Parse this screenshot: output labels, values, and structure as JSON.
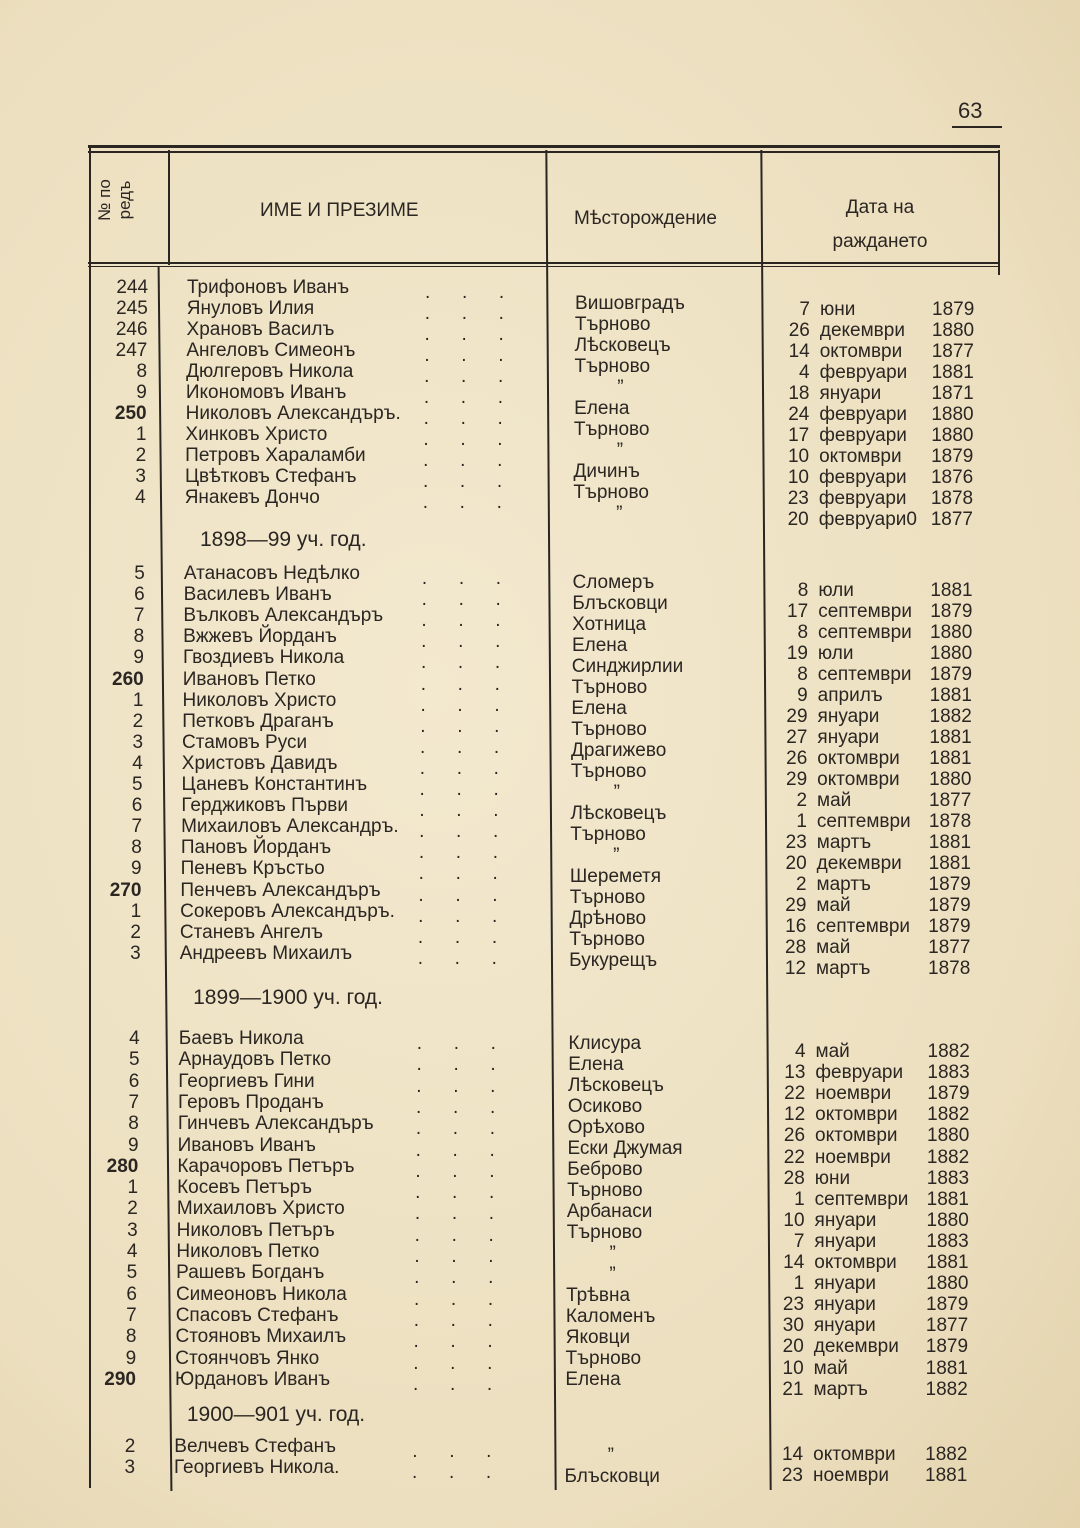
{
  "page_number": "63",
  "header": {
    "col_num": "№ по ред",
    "col_num_line1": "№ по",
    "col_num_line2": "редъ",
    "col_name": "ИМЕ И ПРЕЗИМЕ",
    "col_place": "Мѣсторождение",
    "col_date_line1": "Дата на",
    "col_date_line2": "раждането"
  },
  "sections": [
    {
      "title": "",
      "rows": [
        {
          "num": "244",
          "name": "Трифоновъ Иванъ"
        },
        {
          "num": "245",
          "name": "Януловъ Илия"
        },
        {
          "num": "246",
          "name": "Храновъ Василъ"
        },
        {
          "num": "247",
          "name": "Ангеловъ Симеонъ"
        },
        {
          "num": "8",
          "name": "Дюлгеровъ Никола"
        },
        {
          "num": "9",
          "name": "Икономовъ Иванъ"
        },
        {
          "num": "250",
          "name": "Николовъ Александъръ."
        },
        {
          "num": "1",
          "name": "Хинковъ Христо"
        },
        {
          "num": "2",
          "name": "Петровъ Хараламби"
        },
        {
          "num": "3",
          "name": "Цвѣтковъ Стефанъ"
        },
        {
          "num": "4",
          "name": "Янакевъ Дончо"
        }
      ],
      "places": [
        "Вишовградъ",
        "Търново",
        "Лѣсковецъ",
        "Търново",
        "”",
        "Елена",
        "Търново",
        "”",
        "Дичинъ",
        "Търново",
        "”"
      ],
      "dates": [
        {
          "day": "7",
          "month": "юни",
          "year": "1879"
        },
        {
          "day": "26",
          "month": "декември",
          "year": "1880"
        },
        {
          "day": "14",
          "month": "октомври",
          "year": "1877"
        },
        {
          "day": "4",
          "month": "февруари",
          "year": "1881"
        },
        {
          "day": "18",
          "month": "януари",
          "year": "1871"
        },
        {
          "day": "24",
          "month": "февруари",
          "year": "1880"
        },
        {
          "day": "17",
          "month": "февруари",
          "year": "1880"
        },
        {
          "day": "10",
          "month": "октомври",
          "year": "1879"
        },
        {
          "day": "10",
          "month": "февруари",
          "year": "1876"
        },
        {
          "day": "23",
          "month": "февруари",
          "year": "1878"
        },
        {
          "day": "20",
          "month": "февруари0",
          "year": "1877"
        }
      ]
    },
    {
      "title": "1898—99 уч. год.",
      "rows": [
        {
          "num": "5",
          "name": "Атанасовъ Недѣлко"
        },
        {
          "num": "6",
          "name": "Василевъ Иванъ"
        },
        {
          "num": "7",
          "name": "Вълковъ Александъръ"
        },
        {
          "num": "8",
          "name": "Вжжевъ Йорданъ"
        },
        {
          "num": "9",
          "name": "Гвоздиевъ Никола"
        },
        {
          "num": "260",
          "name": "Ивановъ Петко"
        },
        {
          "num": "1",
          "name": "Николовъ Христо"
        },
        {
          "num": "2",
          "name": "Петковъ Драганъ"
        },
        {
          "num": "3",
          "name": "Стамовъ Руси"
        },
        {
          "num": "4",
          "name": "Христовъ Давидъ"
        },
        {
          "num": "5",
          "name": "Цаневъ Константинъ"
        },
        {
          "num": "6",
          "name": "Герджиковъ Първи"
        },
        {
          "num": "7",
          "name": "Михаиловъ Александръ."
        },
        {
          "num": "8",
          "name": "Пановъ Йорданъ"
        },
        {
          "num": "9",
          "name": "Пеневъ Кръстьо"
        },
        {
          "num": "270",
          "name": "Пенчевъ Александъръ"
        },
        {
          "num": "1",
          "name": "Сокеровъ Александъръ."
        },
        {
          "num": "2",
          "name": "Станевъ Ангелъ"
        },
        {
          "num": "3",
          "name": "Андреевъ Михаилъ"
        }
      ],
      "places": [
        "Сломеръ",
        "Блъсковци",
        "Хотница",
        "Елена",
        "Синджирлии",
        "Търново",
        "Елена",
        "Търново",
        "Драгижево",
        "Търново",
        "”",
        "Лѣсковецъ",
        "Търново",
        "”",
        "Шереметя",
        "Търново",
        "Дрѣново",
        "Търново",
        "Букурещъ"
      ],
      "dates": [
        {
          "day": "8",
          "month": "юли",
          "year": "1881"
        },
        {
          "day": "17",
          "month": "септември",
          "year": "1879"
        },
        {
          "day": "8",
          "month": "септември",
          "year": "1880"
        },
        {
          "day": "19",
          "month": "юли",
          "year": "1880"
        },
        {
          "day": "8",
          "month": "септември",
          "year": "1879"
        },
        {
          "day": "9",
          "month": "априлъ",
          "year": "1881"
        },
        {
          "day": "29",
          "month": "януари",
          "year": "1882"
        },
        {
          "day": "27",
          "month": "януари",
          "year": "1881"
        },
        {
          "day": "26",
          "month": "октомври",
          "year": "1881"
        },
        {
          "day": "29",
          "month": "октомври",
          "year": "1880"
        },
        {
          "day": "2",
          "month": "май",
          "year": "1877"
        },
        {
          "day": "1",
          "month": "септември",
          "year": "1878"
        },
        {
          "day": "23",
          "month": "мартъ",
          "year": "1881"
        },
        {
          "day": "20",
          "month": "декември",
          "year": "1881"
        },
        {
          "day": "2",
          "month": "мартъ",
          "year": "1879"
        },
        {
          "day": "29",
          "month": "май",
          "year": "1879"
        },
        {
          "day": "16",
          "month": "септември",
          "year": "1879"
        },
        {
          "day": "28",
          "month": "май",
          "year": "1877"
        },
        {
          "day": "12",
          "month": "мартъ",
          "year": "1878"
        }
      ]
    },
    {
      "title": "1899—1900 уч. год.",
      "rows": [
        {
          "num": "4",
          "name": "Баевъ Никола"
        },
        {
          "num": "5",
          "name": "Арнаудовъ Петко"
        },
        {
          "num": "6",
          "name": "Георгиевъ Гини"
        },
        {
          "num": "7",
          "name": "Геровъ Проданъ"
        },
        {
          "num": "8",
          "name": "Гинчевъ Александъръ"
        },
        {
          "num": "9",
          "name": "Ивановъ Иванъ"
        },
        {
          "num": "280",
          "name": "Карачоровъ Петъръ"
        },
        {
          "num": "1",
          "name": "Косевъ Петъръ"
        },
        {
          "num": "2",
          "name": "Михаиловъ Христо"
        },
        {
          "num": "3",
          "name": "Николовъ Петъръ"
        },
        {
          "num": "4",
          "name": "Николовъ Петко"
        },
        {
          "num": "5",
          "name": "Рашевъ Богданъ"
        },
        {
          "num": "6",
          "name": "Симеоновъ Никола"
        },
        {
          "num": "7",
          "name": "Спасовъ Стефанъ"
        },
        {
          "num": "8",
          "name": "Стояновъ Михаилъ"
        },
        {
          "num": "9",
          "name": "Стоянчовъ Янко"
        },
        {
          "num": "290",
          "name": "Юрдановъ Иванъ"
        }
      ],
      "places": [
        "Клисура",
        "Елена",
        "Лѣсковецъ",
        "Осиково",
        "Орѣхово",
        "Ески Джумая",
        "Беброво",
        "Търново",
        "Арбанаси",
        "Търново",
        "”",
        "”",
        "Трѣвна",
        "Каломенъ",
        "Яковци",
        "Търново",
        "Елена"
      ],
      "dates": [
        {
          "day": "4",
          "month": "май",
          "year": "1882"
        },
        {
          "day": "13",
          "month": "февруари",
          "year": "1883"
        },
        {
          "day": "22",
          "month": "ноември",
          "year": "1879"
        },
        {
          "day": "12",
          "month": "октомври",
          "year": "1882"
        },
        {
          "day": "26",
          "month": "октомври",
          "year": "1880"
        },
        {
          "day": "22",
          "month": "ноември",
          "year": "1882"
        },
        {
          "day": "28",
          "month": "юни",
          "year": "1883"
        },
        {
          "day": "1",
          "month": "септември",
          "year": "1881"
        },
        {
          "day": "10",
          "month": "януари",
          "year": "1880"
        },
        {
          "day": "7",
          "month": "януари",
          "year": "1883"
        },
        {
          "day": "14",
          "month": "октомври",
          "year": "1881"
        },
        {
          "day": "1",
          "month": "януари",
          "year": "1880"
        },
        {
          "day": "23",
          "month": "януари",
          "year": "1879"
        },
        {
          "day": "30",
          "month": "януари",
          "year": "1877"
        },
        {
          "day": "20",
          "month": "декември",
          "year": "1879"
        },
        {
          "day": "10",
          "month": "май",
          "year": "1881"
        },
        {
          "day": "21",
          "month": "мартъ",
          "year": "1882"
        }
      ]
    },
    {
      "title": "1900—901 уч. год.",
      "rows": [
        {
          "num": "2",
          "name": "Велчевъ Стефанъ"
        },
        {
          "num": "3",
          "name": "Георгиевъ Никола."
        }
      ],
      "places": [
        "”",
        "Блъсковци"
      ],
      "dates": [
        {
          "day": "14",
          "month": "октомври",
          "year": "1882"
        },
        {
          "day": "23",
          "month": "ноември",
          "year": "1881"
        }
      ]
    }
  ]
}
